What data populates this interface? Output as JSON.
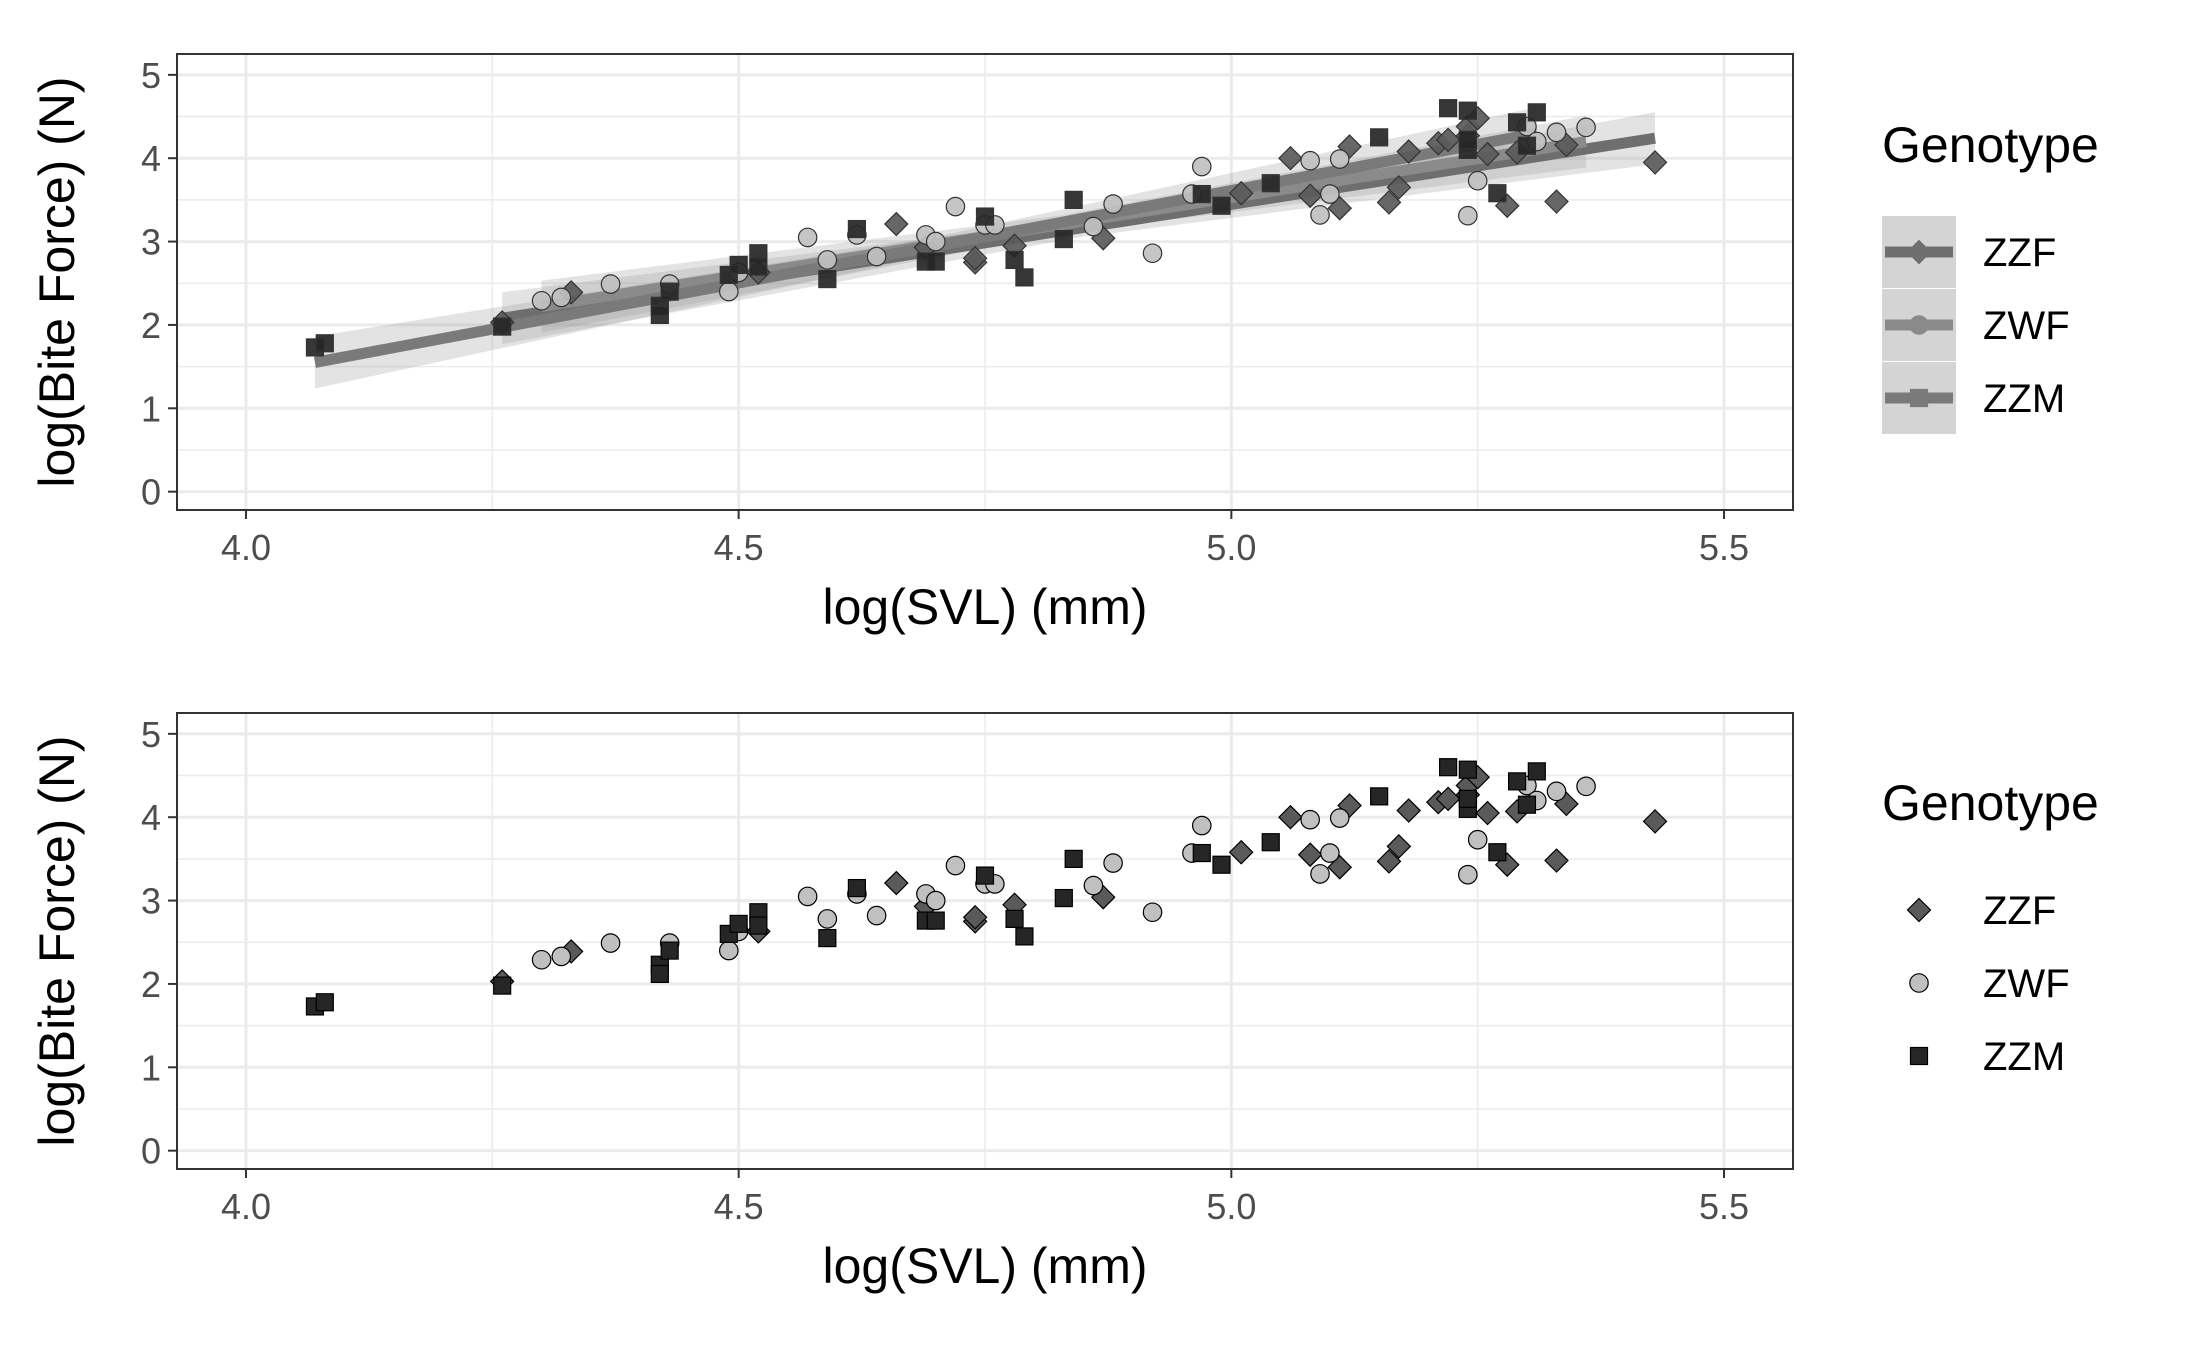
{
  "colors": {
    "ZZF": "#5a5a5a",
    "ZWF": "#c0c0c0",
    "ZZM": "#262626",
    "fit_ZZF": "#6e6e6e",
    "fit_ZWF": "#8a8a8a",
    "fit_ZZM": "#7a7a7a",
    "grid": "#ebebeb",
    "panel_border": "#333333",
    "tick_text": "#4d4d4d"
  },
  "chart_data": [
    {
      "type": "scatter",
      "panel": "top",
      "with_regression": true,
      "xlabel": "log(SVL) (mm)",
      "ylabel": "log(Bite Force) (N)",
      "xlim": [
        3.93,
        5.57
      ],
      "ylim": [
        -0.22,
        5.25
      ],
      "x_ticks": [
        "4.0",
        "4.5",
        "5.0",
        "5.5"
      ],
      "y_ticks": [
        "0",
        "1",
        "2",
        "3",
        "4",
        "5"
      ],
      "legend": {
        "title": "Genotype",
        "position": "right",
        "entries": [
          "ZZF",
          "ZWF",
          "ZZM"
        ]
      },
      "regression": [
        {
          "name": "ZZF",
          "x": [
            4.26,
            5.43
          ],
          "y": [
            2.08,
            4.24
          ]
        },
        {
          "name": "ZWF",
          "x": [
            4.3,
            5.36
          ],
          "y": [
            2.22,
            4.2
          ]
        },
        {
          "name": "ZZM",
          "x": [
            4.07,
            5.31
          ],
          "y": [
            1.55,
            4.3
          ]
        }
      ],
      "series": [
        {
          "name": "ZZF",
          "marker": "diamond",
          "points": [
            [
              4.26,
              2.03
            ],
            [
              4.33,
              2.39
            ],
            [
              4.52,
              2.63
            ],
            [
              4.66,
              3.21
            ],
            [
              4.69,
              2.93
            ],
            [
              4.74,
              2.75
            ],
            [
              4.74,
              2.8
            ],
            [
              4.78,
              2.95
            ],
            [
              4.87,
              3.04
            ],
            [
              5.01,
              3.58
            ],
            [
              5.06,
              4.0
            ],
            [
              5.08,
              3.55
            ],
            [
              5.11,
              3.4
            ],
            [
              5.12,
              4.14
            ],
            [
              5.16,
              3.47
            ],
            [
              5.17,
              3.65
            ],
            [
              5.18,
              4.08
            ],
            [
              5.21,
              4.18
            ],
            [
              5.22,
              4.22
            ],
            [
              5.24,
              4.27
            ],
            [
              5.24,
              4.38
            ],
            [
              5.25,
              4.48
            ],
            [
              5.26,
              4.05
            ],
            [
              5.28,
              3.43
            ],
            [
              5.29,
              4.07
            ],
            [
              5.33,
              3.48
            ],
            [
              5.34,
              4.16
            ],
            [
              5.43,
              3.95
            ]
          ]
        },
        {
          "name": "ZWF",
          "marker": "circle",
          "points": [
            [
              4.3,
              2.29
            ],
            [
              4.32,
              2.33
            ],
            [
              4.37,
              2.49
            ],
            [
              4.43,
              2.49
            ],
            [
              4.49,
              2.4
            ],
            [
              4.5,
              2.63
            ],
            [
              4.57,
              3.05
            ],
            [
              4.59,
              2.78
            ],
            [
              4.62,
              3.08
            ],
            [
              4.64,
              2.82
            ],
            [
              4.69,
              3.08
            ],
            [
              4.7,
              3.0
            ],
            [
              4.72,
              3.42
            ],
            [
              4.75,
              3.2
            ],
            [
              4.76,
              3.2
            ],
            [
              4.86,
              3.18
            ],
            [
              4.88,
              3.45
            ],
            [
              4.92,
              2.86
            ],
            [
              4.96,
              3.57
            ],
            [
              4.97,
              3.9
            ],
            [
              5.08,
              3.97
            ],
            [
              5.09,
              3.32
            ],
            [
              5.1,
              3.57
            ],
            [
              5.11,
              3.99
            ],
            [
              5.24,
              3.31
            ],
            [
              5.25,
              3.73
            ],
            [
              5.3,
              4.38
            ],
            [
              5.31,
              4.2
            ],
            [
              5.33,
              4.31
            ],
            [
              5.36,
              4.37
            ]
          ]
        },
        {
          "name": "ZZM",
          "marker": "square",
          "points": [
            [
              4.07,
              1.73
            ],
            [
              4.08,
              1.78
            ],
            [
              4.26,
              1.98
            ],
            [
              4.42,
              2.23
            ],
            [
              4.42,
              2.12
            ],
            [
              4.43,
              2.4
            ],
            [
              4.49,
              2.6
            ],
            [
              4.5,
              2.72
            ],
            [
              4.52,
              2.86
            ],
            [
              4.52,
              2.7
            ],
            [
              4.59,
              2.55
            ],
            [
              4.62,
              3.15
            ],
            [
              4.69,
              2.76
            ],
            [
              4.7,
              2.76
            ],
            [
              4.75,
              3.3
            ],
            [
              4.78,
              2.78
            ],
            [
              4.79,
              2.57
            ],
            [
              4.83,
              3.03
            ],
            [
              4.84,
              3.5
            ],
            [
              4.97,
              3.57
            ],
            [
              4.99,
              3.43
            ],
            [
              5.04,
              3.7
            ],
            [
              5.15,
              4.25
            ],
            [
              5.22,
              4.6
            ],
            [
              5.24,
              4.57
            ],
            [
              5.24,
              4.1
            ],
            [
              5.24,
              4.22
            ],
            [
              5.27,
              3.58
            ],
            [
              5.29,
              4.43
            ],
            [
              5.3,
              4.15
            ],
            [
              5.31,
              4.55
            ]
          ]
        }
      ]
    },
    {
      "type": "scatter",
      "panel": "bottom",
      "with_regression": false,
      "xlabel": "log(SVL) (mm)",
      "ylabel": "log(Bite Force) (N)",
      "xlim": [
        3.93,
        5.57
      ],
      "ylim": [
        -0.22,
        5.25
      ],
      "x_ticks": [
        "4.0",
        "4.5",
        "5.0",
        "5.5"
      ],
      "y_ticks": [
        "0",
        "1",
        "2",
        "3",
        "4",
        "5"
      ],
      "legend": {
        "title": "Genotype",
        "position": "right",
        "entries": [
          "ZZF",
          "ZWF",
          "ZZM"
        ]
      }
    }
  ]
}
